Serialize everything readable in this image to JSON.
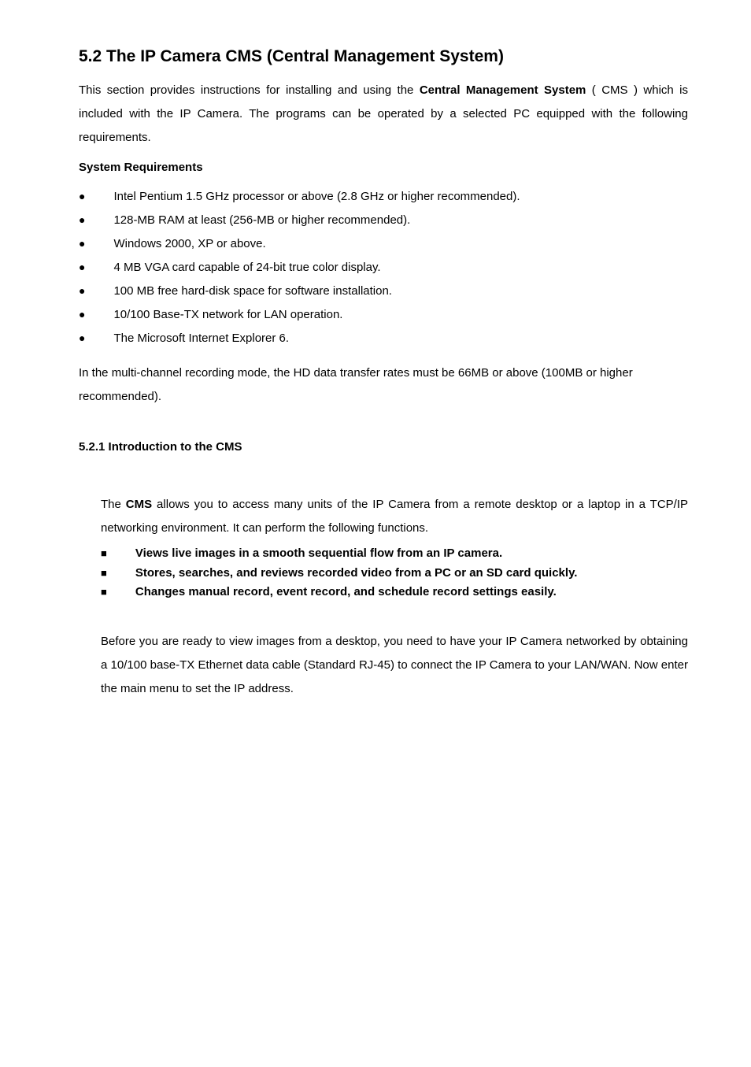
{
  "heading": "5.2 The IP Camera CMS (Central Management System)",
  "intro": {
    "pre": "This section provides instructions for installing and using the ",
    "bold": "Central Management System",
    "post": " ( CMS ) which is included with the IP Camera. The programs can be operated by a selected PC equipped with the following requirements."
  },
  "sysreq_heading": "System Requirements",
  "sysreq_items": [
    "Intel Pentium 1.5 GHz processor or above (2.8 GHz or higher recommended).",
    "128-MB RAM at least (256-MB or higher recommended).",
    "Windows 2000, XP or above.",
    "4 MB VGA card capable of 24-bit true color display.",
    "100 MB free hard-disk space for software installation.",
    "10/100 Base-TX network for LAN operation.",
    "The Microsoft Internet Explorer 6."
  ],
  "post_list": "In the multi-channel recording mode, the HD data transfer rates must be 66MB or above (100MB or higher recommended).",
  "sub_heading": "5.2.1  Introduction to the CMS",
  "body1": {
    "pre": "The ",
    "bold": "CMS",
    "post": " allows you to access many units of the IP Camera from a remote desktop or a laptop in a TCP/IP networking environment. It can perform the following functions."
  },
  "features": [
    "Views live images in a smooth sequential flow from an IP camera.",
    "Stores, searches, and reviews recorded video from a PC or an SD card quickly.",
    "Changes manual record, event record, and schedule record settings easily."
  ],
  "closing": "Before you are ready to view images from a desktop, you need to have your IP Camera networked by obtaining a 10/100 base-TX Ethernet data cable (Standard RJ-45) to connect the IP Camera to your LAN/WAN. Now enter the main menu to set the IP address.",
  "markers": {
    "bullet": "●",
    "square": "■"
  },
  "style": {
    "text_color": "#000000",
    "background_color": "#ffffff",
    "heading_fontsize": 21,
    "body_fontsize": 15,
    "line_height": 2.0
  }
}
